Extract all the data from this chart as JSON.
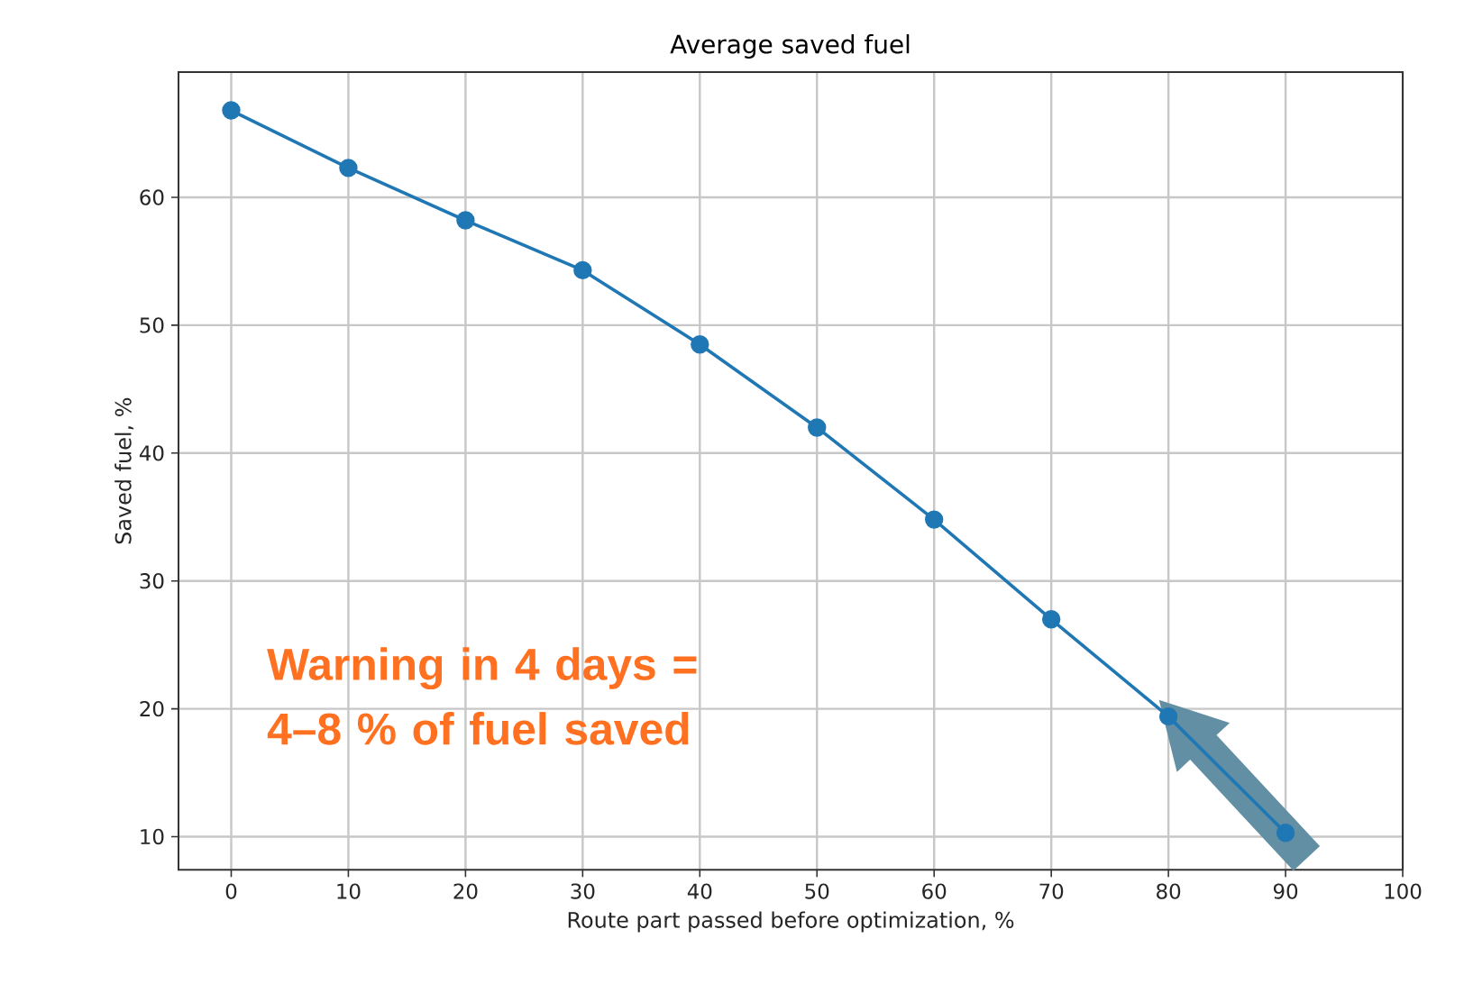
{
  "chart_data": {
    "type": "line",
    "title": "Average saved fuel",
    "xlabel": "Route part passed before optimization, %",
    "ylabel": "Saved fuel, %",
    "x": [
      0,
      10,
      20,
      30,
      40,
      50,
      60,
      70,
      80,
      90
    ],
    "series": [
      {
        "color": "#1f77b4",
        "values": [
          66.8,
          62.3,
          58.2,
          54.3,
          48.5,
          42.0,
          34.8,
          27.0,
          19.4,
          10.3
        ]
      }
    ],
    "xlim": [
      -4.5,
      100
    ],
    "ylim": [
      7.4,
      69.8
    ],
    "xticks": [
      0,
      10,
      20,
      30,
      40,
      50,
      60,
      70,
      80,
      90,
      100
    ],
    "yticks": [
      10,
      20,
      30,
      40,
      50,
      60
    ],
    "grid": true,
    "marker": "circle",
    "line_style": "solid",
    "annotations": [
      "Warning in 4 days = 4–8 % of fuel saved"
    ]
  }
}
